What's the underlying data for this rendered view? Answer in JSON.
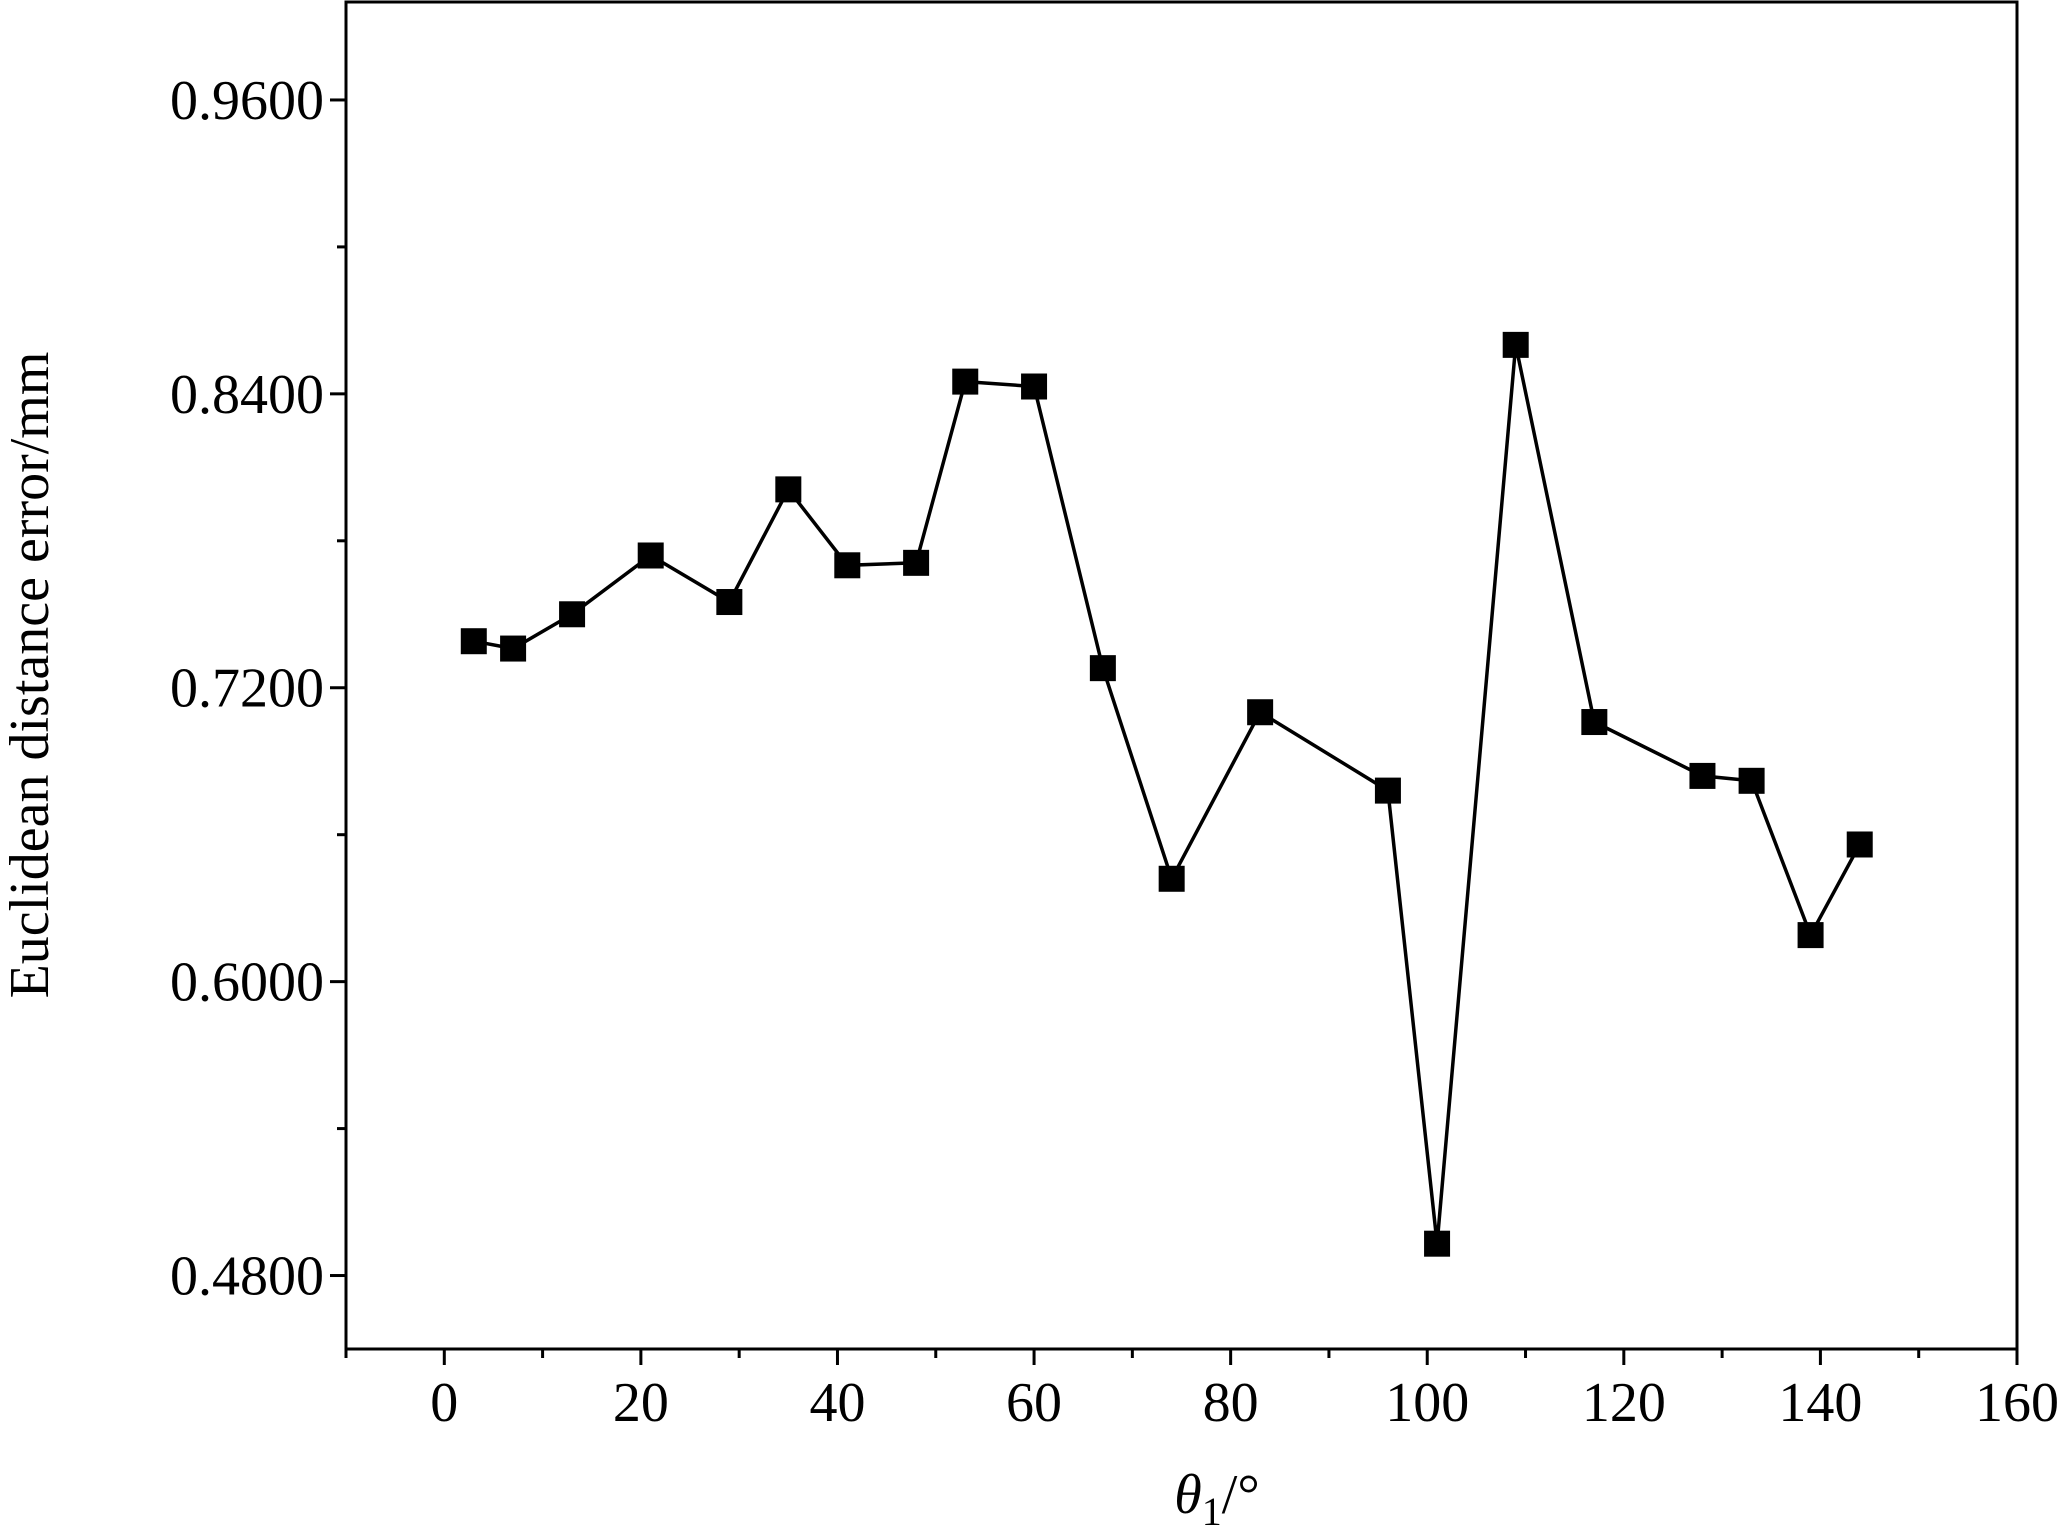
{
  "chart_data": {
    "type": "line",
    "title": "",
    "xlabel": "θ1/°",
    "xlabel_symbol": "θ",
    "xlabel_subscript": "1",
    "xlabel_unit": "/°",
    "ylabel": "Euclidean distance error/mm",
    "xlim": [
      -10,
      160
    ],
    "ylim": [
      0.45,
      1.0
    ],
    "x_ticks": [
      0,
      20,
      40,
      60,
      80,
      100,
      120,
      140,
      160
    ],
    "x_tick_labels": [
      "0",
      "20",
      "40",
      "60",
      "80",
      "100",
      "120",
      "140",
      "160"
    ],
    "y_ticks": [
      0.48,
      0.6,
      0.72,
      0.84,
      0.96
    ],
    "y_tick_labels": [
      "0.4800",
      "0.6000",
      "0.7200",
      "0.8400",
      "0.9600"
    ],
    "grid": false,
    "legend": "none",
    "series": [
      {
        "marker": "square",
        "color": "#000000",
        "x": [
          3,
          7,
          13,
          21,
          29,
          35,
          41,
          48,
          53,
          60,
          67,
          74,
          83,
          96,
          101,
          109,
          117,
          128,
          133,
          139,
          144
        ],
        "y": [
          0.739,
          0.736,
          0.75,
          0.774,
          0.755,
          0.801,
          0.77,
          0.771,
          0.845,
          0.843,
          0.728,
          0.642,
          0.71,
          0.678,
          0.493,
          0.86,
          0.706,
          0.684,
          0.682,
          0.619,
          0.656
        ]
      }
    ]
  }
}
